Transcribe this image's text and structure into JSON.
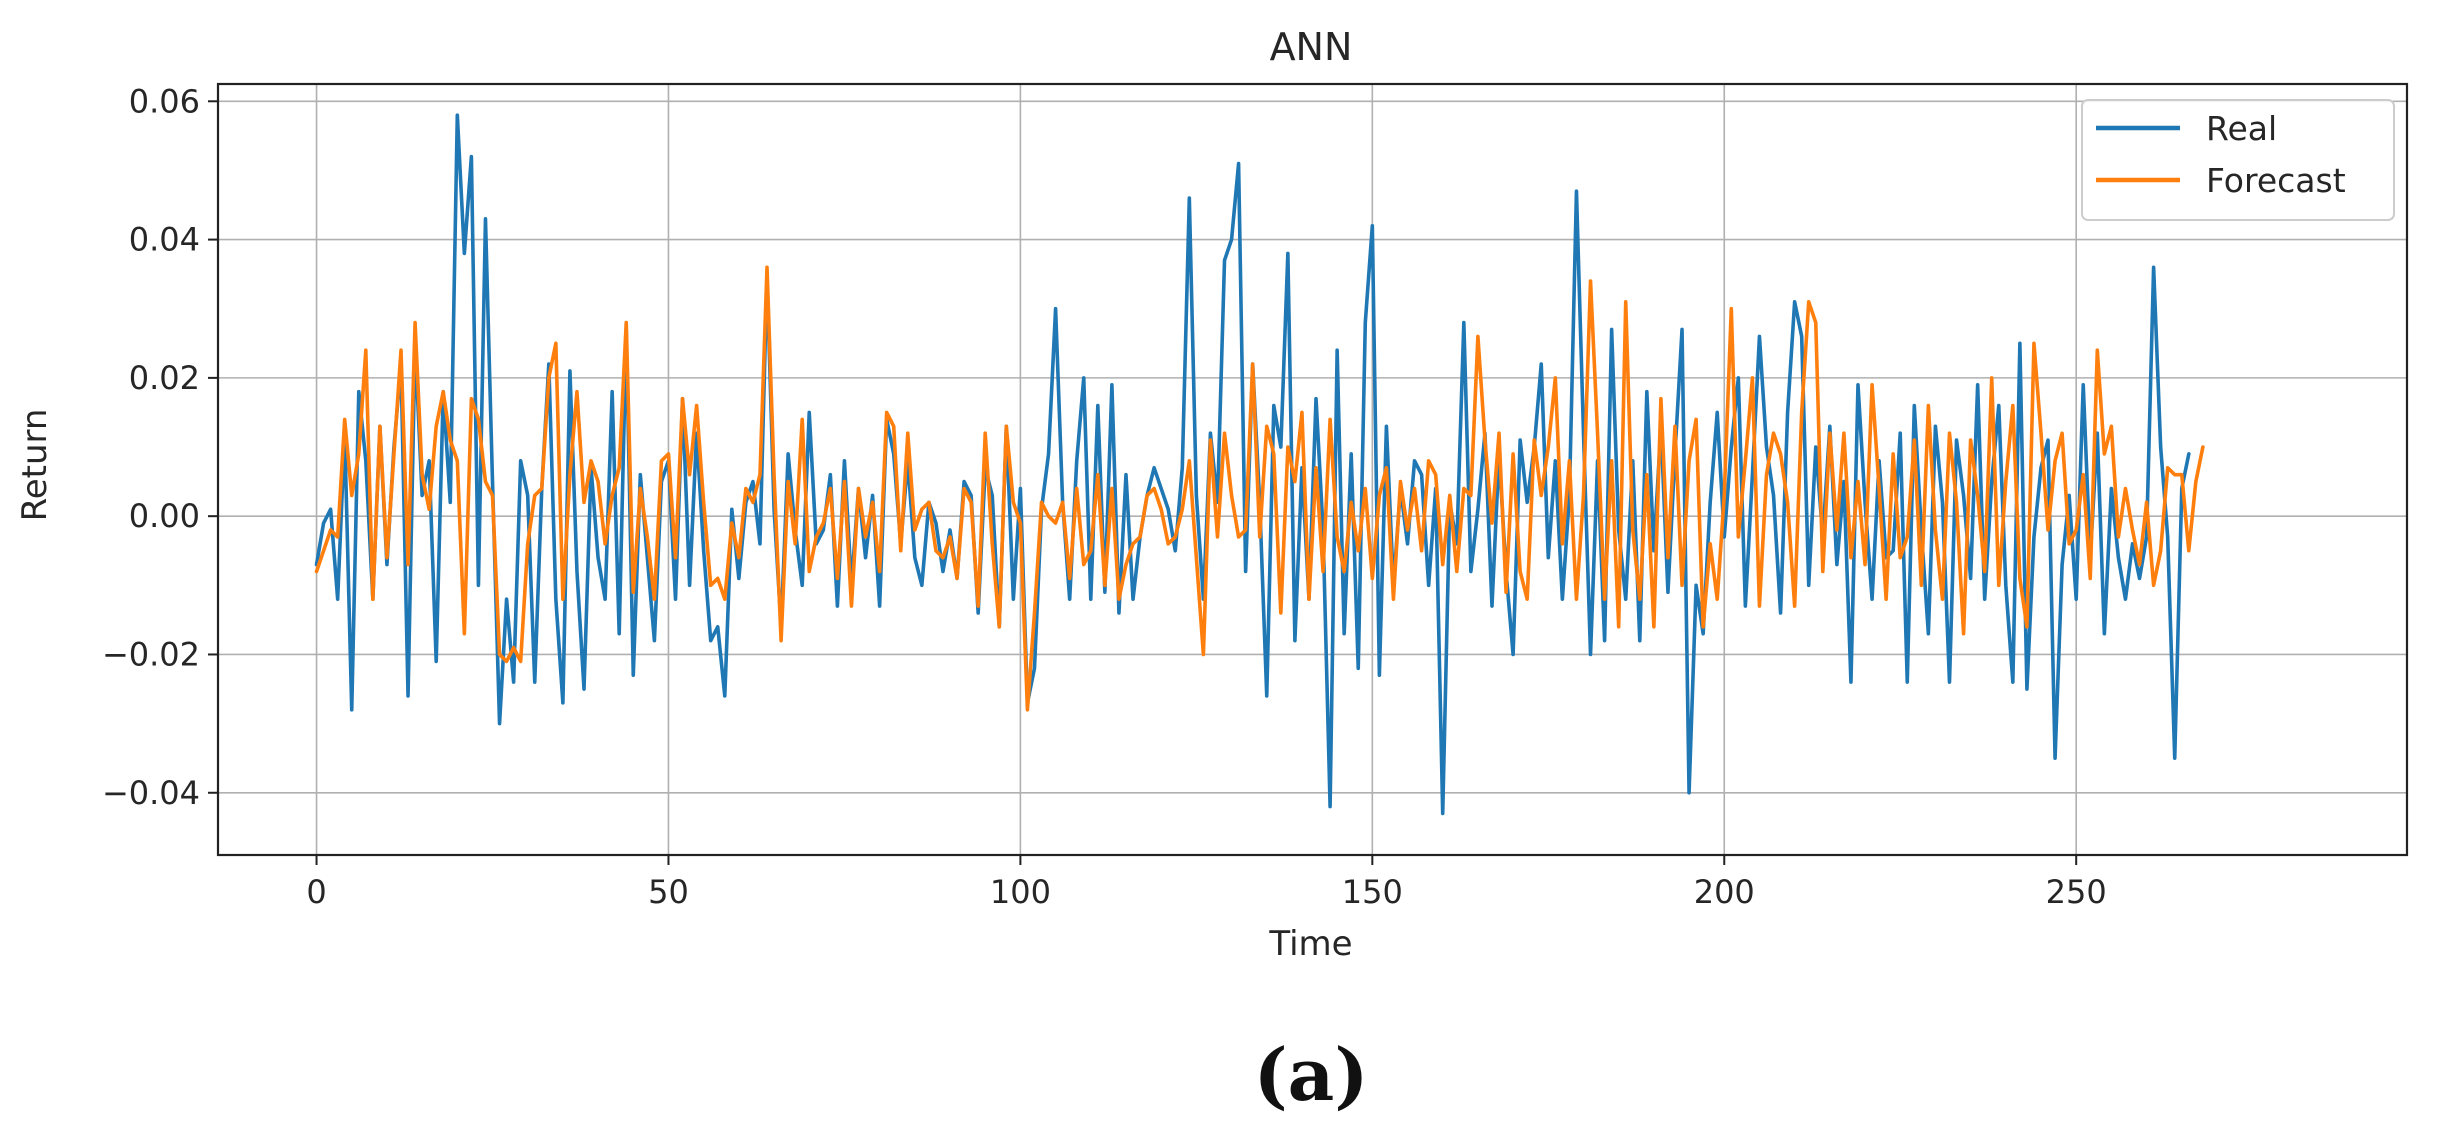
{
  "panel_label": "(a)",
  "chart_data": {
    "type": "line",
    "title": "ANN",
    "xlabel": "Time",
    "ylabel": "Return",
    "xlim": [
      -14,
      297
    ],
    "ylim": [
      -0.049,
      0.0625
    ],
    "xticks": [
      0,
      50,
      100,
      150,
      200,
      250
    ],
    "xtick_labels": [
      "0",
      "50",
      "100",
      "150",
      "200",
      "250"
    ],
    "yticks": [
      -0.04,
      -0.02,
      0.0,
      0.02,
      0.04,
      0.06
    ],
    "ytick_labels": [
      "−0.04",
      "−0.02",
      "0.00",
      "0.02",
      "0.04",
      "0.06"
    ],
    "grid": true,
    "legend_position": "top-right",
    "series": [
      {
        "name": "Real",
        "color": "#1f77b4",
        "x_start": 0,
        "values": [
          -0.007,
          -0.001,
          0.001,
          -0.012,
          0.012,
          -0.028,
          0.018,
          0.008,
          -0.012,
          0.013,
          -0.007,
          0.01,
          0.022,
          -0.026,
          0.025,
          0.003,
          0.008,
          -0.021,
          0.018,
          0.002,
          0.058,
          0.038,
          0.052,
          -0.01,
          0.043,
          0.005,
          -0.03,
          -0.012,
          -0.024,
          0.008,
          0.003,
          -0.024,
          0.004,
          0.022,
          -0.012,
          -0.027,
          0.021,
          -0.008,
          -0.025,
          0.007,
          -0.006,
          -0.012,
          0.018,
          -0.017,
          0.027,
          -0.023,
          0.006,
          -0.006,
          -0.018,
          0.005,
          0.008,
          -0.012,
          0.017,
          -0.01,
          0.012,
          -0.005,
          -0.018,
          -0.016,
          -0.026,
          0.001,
          -0.009,
          0.002,
          0.005,
          -0.004,
          0.035,
          0.001,
          -0.016,
          0.009,
          -0.002,
          -0.01,
          0.015,
          -0.004,
          -0.002,
          0.006,
          -0.013,
          0.008,
          -0.01,
          0.004,
          -0.006,
          0.003,
          -0.013,
          0.014,
          0.009,
          -0.004,
          0.008,
          -0.006,
          -0.01,
          0.002,
          -0.001,
          -0.008,
          -0.002,
          -0.009,
          0.005,
          0.003,
          -0.014,
          0.007,
          0.003,
          -0.016,
          0.013,
          -0.012,
          0.004,
          -0.027,
          -0.022,
          0.001,
          0.009,
          0.03,
          0.002,
          -0.012,
          0.008,
          0.02,
          -0.012,
          0.016,
          -0.011,
          0.019,
          -0.014,
          0.006,
          -0.012,
          -0.003,
          0.003,
          0.007,
          0.004,
          0.001,
          -0.005,
          0.007,
          0.046,
          0.003,
          -0.012,
          0.012,
          0.002,
          0.037,
          0.04,
          0.051,
          -0.008,
          0.022,
          0.002,
          -0.026,
          0.016,
          0.01,
          0.038,
          -0.018,
          0.007,
          -0.012,
          0.017,
          -0.002,
          -0.042,
          0.024,
          -0.017,
          0.009,
          -0.022,
          0.028,
          0.042,
          -0.023,
          0.013,
          -0.01,
          0.004,
          -0.004,
          0.008,
          0.006,
          -0.01,
          0.004,
          -0.043,
          0.002,
          -0.004,
          0.028,
          -0.008,
          0.001,
          0.012,
          -0.013,
          0.009,
          -0.008,
          -0.02,
          0.011,
          0.002,
          0.01,
          0.022,
          -0.006,
          0.008,
          -0.012,
          0.003,
          0.047,
          0.012,
          -0.02,
          0.008,
          -0.018,
          0.027,
          -0.002,
          -0.012,
          0.008,
          -0.018,
          0.018,
          -0.005,
          0.013,
          -0.011,
          0.009,
          0.027,
          -0.04,
          -0.01,
          -0.017,
          0.002,
          0.015,
          -0.003,
          0.01,
          0.02,
          -0.013,
          0.006,
          0.026,
          0.01,
          0.003,
          -0.014,
          0.015,
          0.031,
          0.026,
          -0.01,
          0.01,
          -0.003,
          0.013,
          -0.007,
          0.005,
          -0.024,
          0.019,
          0.002,
          -0.012,
          0.008,
          -0.006,
          -0.005,
          0.012,
          -0.024,
          0.016,
          -0.002,
          -0.017,
          0.013,
          0.002,
          -0.024,
          0.011,
          0.003,
          -0.009,
          0.019,
          -0.012,
          0.005,
          0.016,
          -0.01,
          -0.024,
          0.025,
          -0.025,
          -0.003,
          0.007,
          0.011,
          -0.035,
          -0.007,
          0.003,
          -0.012,
          0.019,
          -0.006,
          0.012,
          -0.017,
          0.004,
          -0.006,
          -0.012,
          -0.004,
          -0.009,
          -0.003,
          0.036,
          0.01,
          -0.003,
          -0.035,
          0.004,
          0.009
        ]
      },
      {
        "name": "Forecast",
        "color": "#ff7f0e",
        "x_start": 0,
        "values": [
          -0.008,
          -0.005,
          -0.002,
          -0.003,
          0.014,
          0.003,
          0.009,
          0.024,
          -0.012,
          0.013,
          -0.006,
          0.009,
          0.024,
          -0.007,
          0.028,
          0.006,
          0.001,
          0.013,
          0.018,
          0.011,
          0.008,
          -0.017,
          0.017,
          0.014,
          0.005,
          0.003,
          -0.02,
          -0.021,
          -0.019,
          -0.021,
          -0.004,
          0.003,
          0.004,
          0.02,
          0.025,
          -0.012,
          0.006,
          0.018,
          0.002,
          0.008,
          0.005,
          -0.004,
          0.003,
          0.007,
          0.028,
          -0.011,
          0.004,
          -0.003,
          -0.012,
          0.008,
          0.009,
          -0.006,
          0.017,
          0.006,
          0.016,
          0.002,
          -0.01,
          -0.009,
          -0.012,
          -0.001,
          -0.006,
          0.004,
          0.002,
          0.006,
          0.036,
          0.006,
          -0.018,
          0.005,
          -0.004,
          0.014,
          -0.008,
          -0.003,
          -0.001,
          0.004,
          -0.009,
          0.005,
          -0.013,
          0.004,
          -0.003,
          0.002,
          -0.008,
          0.015,
          0.013,
          -0.005,
          0.012,
          -0.002,
          0.001,
          0.002,
          -0.005,
          -0.006,
          -0.003,
          -0.009,
          0.004,
          0.002,
          -0.013,
          0.012,
          -0.004,
          -0.016,
          0.013,
          0.002,
          -0.001,
          -0.028,
          -0.014,
          0.002,
          0.0,
          -0.001,
          0.002,
          -0.009,
          0.004,
          -0.007,
          -0.005,
          0.006,
          -0.01,
          0.004,
          -0.012,
          -0.007,
          -0.004,
          -0.003,
          0.003,
          0.004,
          0.001,
          -0.004,
          -0.003,
          0.001,
          0.008,
          -0.006,
          -0.02,
          0.011,
          -0.003,
          0.012,
          0.003,
          -0.003,
          -0.002,
          0.022,
          -0.003,
          0.013,
          0.009,
          -0.014,
          0.01,
          0.005,
          0.015,
          -0.012,
          0.007,
          -0.008,
          0.014,
          -0.003,
          -0.008,
          0.002,
          -0.005,
          0.004,
          -0.009,
          0.003,
          0.007,
          -0.012,
          0.005,
          -0.002,
          0.004,
          -0.005,
          0.008,
          0.006,
          -0.007,
          0.003,
          -0.008,
          0.004,
          0.003,
          0.026,
          0.011,
          -0.001,
          0.012,
          -0.011,
          0.009,
          -0.008,
          -0.012,
          0.011,
          0.003,
          0.01,
          0.02,
          -0.004,
          0.008,
          -0.012,
          0.003,
          0.034,
          0.012,
          -0.012,
          0.008,
          -0.016,
          0.031,
          -0.002,
          -0.012,
          0.006,
          -0.016,
          0.017,
          -0.006,
          0.013,
          -0.01,
          0.008,
          0.014,
          -0.016,
          -0.004,
          -0.012,
          0.003,
          0.03,
          -0.003,
          0.008,
          0.02,
          -0.013,
          0.006,
          0.012,
          0.009,
          0.002,
          -0.013,
          0.015,
          0.031,
          0.028,
          -0.008,
          0.012,
          -0.002,
          0.012,
          -0.006,
          0.005,
          -0.007,
          0.019,
          0.004,
          -0.012,
          0.009,
          -0.006,
          -0.003,
          0.011,
          -0.01,
          0.016,
          -0.002,
          -0.012,
          0.012,
          0.002,
          -0.017,
          0.011,
          0.003,
          -0.008,
          0.02,
          -0.01,
          0.005,
          0.016,
          -0.009,
          -0.016,
          0.025,
          0.012,
          -0.002,
          0.008,
          0.012,
          -0.004,
          -0.002,
          0.006,
          -0.009,
          0.024,
          0.009,
          0.013,
          -0.003,
          0.004,
          -0.002,
          -0.007,
          0.002,
          -0.01,
          -0.005,
          0.007,
          0.006,
          0.006,
          -0.005,
          0.005,
          0.01
        ]
      }
    ]
  }
}
